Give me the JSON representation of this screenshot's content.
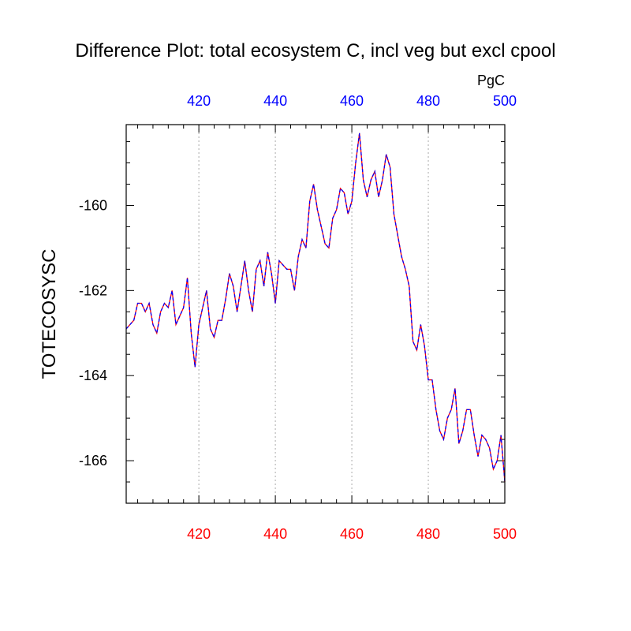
{
  "chart_data": {
    "type": "line",
    "title": "Difference Plot: total ecosystem C, incl veg but excl cpool",
    "units": "PgC",
    "ylabel": "TOTECOSYSC",
    "xlabel": "",
    "xlim": [
      401,
      500
    ],
    "ylim": [
      -167.0,
      -158.1
    ],
    "x_major_ticks": [
      420,
      440,
      460,
      480,
      500
    ],
    "x_tick_labels": [
      "420",
      "440",
      "460",
      "480",
      "500"
    ],
    "y_major_ticks": [
      -160,
      -162,
      -164,
      -166
    ],
    "y_tick_labels": [
      "-160",
      "-162",
      "-164",
      "-166"
    ],
    "grid": "vertical-dashed",
    "colors": {
      "line_solid": "#ff0000",
      "line_dashed": "#0000ff",
      "top_axis_labels": "#0000ff",
      "bottom_axis_labels": "#ff0000"
    },
    "series": [
      {
        "x": [
          401,
          402,
          403,
          404,
          405,
          406,
          407,
          408,
          409,
          410,
          411,
          412,
          413,
          414,
          415,
          416,
          417,
          418,
          419,
          420,
          421,
          422,
          423,
          424,
          425,
          426,
          427,
          428,
          429,
          430,
          431,
          432,
          433,
          434,
          435,
          436,
          437,
          438,
          439,
          440,
          441,
          442,
          443,
          444,
          445,
          446,
          447,
          448,
          449,
          450,
          451,
          452,
          453,
          454,
          455,
          456,
          457,
          458,
          459,
          460,
          461,
          462,
          463,
          464,
          465,
          466,
          467,
          468,
          469,
          470,
          471,
          472,
          473,
          474,
          475,
          476,
          477,
          478,
          479,
          480,
          481,
          482,
          483,
          484,
          485,
          486,
          487,
          488,
          489,
          490,
          491,
          492,
          493,
          494,
          495,
          496,
          497,
          498,
          499,
          500
        ],
        "values": [
          -162.9,
          -162.8,
          -162.7,
          -162.3,
          -162.3,
          -162.5,
          -162.3,
          -162.8,
          -163.0,
          -162.5,
          -162.3,
          -162.4,
          -162.0,
          -162.8,
          -162.6,
          -162.4,
          -161.7,
          -163.0,
          -163.8,
          -162.8,
          -162.4,
          -162.0,
          -162.9,
          -163.1,
          -162.7,
          -162.7,
          -162.2,
          -161.6,
          -161.9,
          -162.5,
          -161.9,
          -161.3,
          -162.0,
          -162.5,
          -161.5,
          -161.3,
          -161.9,
          -161.1,
          -161.6,
          -162.3,
          -161.3,
          -161.4,
          -161.5,
          -161.5,
          -162.0,
          -161.2,
          -160.8,
          -161.0,
          -159.9,
          -159.5,
          -160.1,
          -160.5,
          -160.9,
          -161.0,
          -160.3,
          -160.1,
          -159.6,
          -159.7,
          -160.2,
          -159.9,
          -159.0,
          -158.3,
          -159.4,
          -159.8,
          -159.4,
          -159.2,
          -159.8,
          -159.4,
          -158.8,
          -159.1,
          -160.2,
          -160.7,
          -161.2,
          -161.5,
          -161.9,
          -163.2,
          -163.4,
          -162.8,
          -163.3,
          -164.1,
          -164.1,
          -164.8,
          -165.3,
          -165.5,
          -165.0,
          -164.8,
          -164.3,
          -165.6,
          -165.3,
          -164.8,
          -164.8,
          -165.4,
          -165.9,
          -165.4,
          -165.5,
          -165.7,
          -166.2,
          -166.0,
          -165.4,
          -166.5
        ]
      }
    ]
  }
}
